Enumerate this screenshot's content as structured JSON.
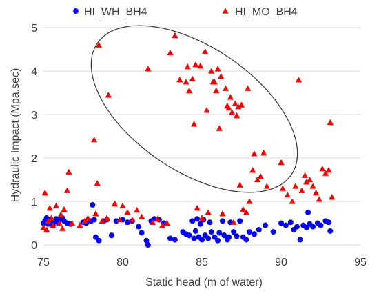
{
  "chart_data": {
    "type": "scatter",
    "title": "",
    "xlabel": "Static head (m of water)",
    "ylabel": "Hydraulic Impact (Mpa.sec)",
    "xlim": [
      75,
      95
    ],
    "ylim": [
      0,
      5
    ],
    "x_ticks": [
      75,
      80,
      85,
      90,
      95
    ],
    "y_ticks": [
      0,
      1,
      2,
      3,
      4,
      5
    ],
    "grid": "horizontal",
    "legend_position": "top",
    "annotation": "ellipse enclosing the HI_MO_BH4 points above ~1.5 Mpa.sec between ~78 and ~92 m",
    "series": [
      {
        "name": "HI_WH_BH4",
        "marker": "circle",
        "color": "#0000ff",
        "points": [
          [
            75.0,
            0.5
          ],
          [
            75.1,
            0.55
          ],
          [
            75.2,
            0.62
          ],
          [
            75.3,
            0.48
          ],
          [
            75.4,
            0.58
          ],
          [
            75.5,
            0.52
          ],
          [
            75.6,
            0.45
          ],
          [
            75.7,
            0.55
          ],
          [
            75.8,
            0.6
          ],
          [
            75.9,
            0.52
          ],
          [
            76.0,
            0.58
          ],
          [
            76.2,
            0.62
          ],
          [
            76.3,
            0.55
          ],
          [
            76.5,
            0.5
          ],
          [
            76.7,
            0.48
          ],
          [
            77.5,
            0.52
          ],
          [
            77.7,
            0.5
          ],
          [
            78.0,
            0.55
          ],
          [
            78.1,
            0.92
          ],
          [
            78.2,
            0.58
          ],
          [
            78.3,
            0.18
          ],
          [
            78.5,
            0.1
          ],
          [
            78.8,
            0.55
          ],
          [
            79.0,
            0.58
          ],
          [
            79.3,
            0.22
          ],
          [
            79.6,
            0.55
          ],
          [
            80.0,
            0.58
          ],
          [
            80.3,
            0.52
          ],
          [
            80.6,
            0.55
          ],
          [
            81.0,
            0.42
          ],
          [
            81.2,
            0.28
          ],
          [
            81.5,
            0.1
          ],
          [
            81.6,
            0.0
          ],
          [
            81.8,
            0.55
          ],
          [
            82.0,
            0.6
          ],
          [
            82.3,
            0.58
          ],
          [
            82.6,
            0.5
          ],
          [
            83.0,
            0.15
          ],
          [
            83.3,
            0.12
          ],
          [
            83.8,
            0.3
          ],
          [
            84.0,
            0.25
          ],
          [
            84.2,
            0.22
          ],
          [
            84.4,
            0.55
          ],
          [
            84.5,
            0.15
          ],
          [
            84.6,
            0.32
          ],
          [
            84.7,
            0.6
          ],
          [
            84.8,
            0.18
          ],
          [
            84.9,
            0.48
          ],
          [
            85.0,
            0.12
          ],
          [
            85.1,
            0.58
          ],
          [
            85.2,
            0.22
          ],
          [
            85.4,
            0.15
          ],
          [
            85.5,
            0.52
          ],
          [
            85.6,
            0.3
          ],
          [
            85.8,
            0.18
          ],
          [
            86.0,
            0.1
          ],
          [
            86.1,
            0.28
          ],
          [
            86.3,
            0.55
          ],
          [
            86.4,
            0.22
          ],
          [
            86.6,
            0.12
          ],
          [
            86.7,
            0.18
          ],
          [
            86.8,
            0.52
          ],
          [
            87.0,
            0.3
          ],
          [
            87.2,
            0.2
          ],
          [
            87.4,
            0.55
          ],
          [
            87.6,
            0.18
          ],
          [
            87.8,
            0.12
          ],
          [
            88.0,
            0.3
          ],
          [
            88.3,
            0.25
          ],
          [
            88.6,
            0.35
          ],
          [
            89.0,
            0.45
          ],
          [
            89.5,
            0.3
          ],
          [
            90.0,
            0.5
          ],
          [
            90.3,
            0.45
          ],
          [
            90.6,
            0.52
          ],
          [
            90.8,
            0.35
          ],
          [
            91.0,
            0.42
          ],
          [
            91.2,
            0.12
          ],
          [
            91.4,
            0.45
          ],
          [
            91.6,
            0.4
          ],
          [
            91.7,
            0.75
          ],
          [
            91.8,
            0.48
          ],
          [
            92.0,
            0.42
          ],
          [
            92.3,
            0.5
          ],
          [
            92.5,
            0.45
          ],
          [
            92.8,
            0.55
          ],
          [
            93.0,
            0.52
          ],
          [
            93.1,
            0.32
          ]
        ]
      },
      {
        "name": "HI_MO_BH4",
        "marker": "triangle",
        "color": "#ff0000",
        "points": [
          [
            75.0,
            0.4
          ],
          [
            75.1,
            1.2
          ],
          [
            75.2,
            0.35
          ],
          [
            75.3,
            0.55
          ],
          [
            75.4,
            0.85
          ],
          [
            75.5,
            0.62
          ],
          [
            75.6,
            0.45
          ],
          [
            75.8,
            0.9
          ],
          [
            76.0,
            0.5
          ],
          [
            76.1,
            0.7
          ],
          [
            76.2,
            0.38
          ],
          [
            76.3,
            0.82
          ],
          [
            76.5,
            1.25
          ],
          [
            76.6,
            1.68
          ],
          [
            76.8,
            0.5
          ],
          [
            77.3,
            0.45
          ],
          [
            77.6,
            0.55
          ],
          [
            77.8,
            0.62
          ],
          [
            78.2,
            2.42
          ],
          [
            78.3,
            0.72
          ],
          [
            78.4,
            1.42
          ],
          [
            78.5,
            4.6
          ],
          [
            78.7,
            0.55
          ],
          [
            79.0,
            0.62
          ],
          [
            79.1,
            3.45
          ],
          [
            79.5,
            0.95
          ],
          [
            79.8,
            0.58
          ],
          [
            80.0,
            0.9
          ],
          [
            80.3,
            0.75
          ],
          [
            80.6,
            0.58
          ],
          [
            80.9,
            0.8
          ],
          [
            81.2,
            0.65
          ],
          [
            81.6,
            4.05
          ],
          [
            81.9,
            0.52
          ],
          [
            82.2,
            0.6
          ],
          [
            82.5,
            0.45
          ],
          [
            82.8,
            0.5
          ],
          [
            83.0,
            4.42
          ],
          [
            83.3,
            4.82
          ],
          [
            83.6,
            3.8
          ],
          [
            84.0,
            3.75
          ],
          [
            84.1,
            4.1
          ],
          [
            84.2,
            3.55
          ],
          [
            84.4,
            3.82
          ],
          [
            84.5,
            2.78
          ],
          [
            84.6,
            4.15
          ],
          [
            84.7,
            0.85
          ],
          [
            84.9,
            4.12
          ],
          [
            85.0,
            0.62
          ],
          [
            85.2,
            4.45
          ],
          [
            85.3,
            3.1
          ],
          [
            85.4,
            0.75
          ],
          [
            85.6,
            4.0
          ],
          [
            85.7,
            3.75
          ],
          [
            85.8,
            3.75
          ],
          [
            85.9,
            3.55
          ],
          [
            86.0,
            4.05
          ],
          [
            86.1,
            2.68
          ],
          [
            86.2,
            3.88
          ],
          [
            86.3,
            0.72
          ],
          [
            86.5,
            3.6
          ],
          [
            86.6,
            3.2
          ],
          [
            86.7,
            3.15
          ],
          [
            86.8,
            3.4
          ],
          [
            86.9,
            3.05
          ],
          [
            87.0,
            0.52
          ],
          [
            87.1,
            3.25
          ],
          [
            87.2,
            2.98
          ],
          [
            87.3,
            3.18
          ],
          [
            87.4,
            1.38
          ],
          [
            87.5,
            3.22
          ],
          [
            87.6,
            0.82
          ],
          [
            87.8,
            0.75
          ],
          [
            87.9,
            3.6
          ],
          [
            88.0,
            1.0
          ],
          [
            88.2,
            1.72
          ],
          [
            88.3,
            2.1
          ],
          [
            88.5,
            1.5
          ],
          [
            88.7,
            1.58
          ],
          [
            88.9,
            2.12
          ],
          [
            89.1,
            1.35
          ],
          [
            90.0,
            1.9
          ],
          [
            90.1,
            1.3
          ],
          [
            90.4,
            1.15
          ],
          [
            90.7,
            1.0
          ],
          [
            90.9,
            1.35
          ],
          [
            91.1,
            3.8
          ],
          [
            91.3,
            1.25
          ],
          [
            91.5,
            1.6
          ],
          [
            91.6,
            1.45
          ],
          [
            91.8,
            1.5
          ],
          [
            92.0,
            1.35
          ],
          [
            92.2,
            1.2
          ],
          [
            92.4,
            1.05
          ],
          [
            92.6,
            1.75
          ],
          [
            92.8,
            1.65
          ],
          [
            93.0,
            1.72
          ],
          [
            93.1,
            2.82
          ],
          [
            93.2,
            1.1
          ]
        ]
      }
    ]
  }
}
